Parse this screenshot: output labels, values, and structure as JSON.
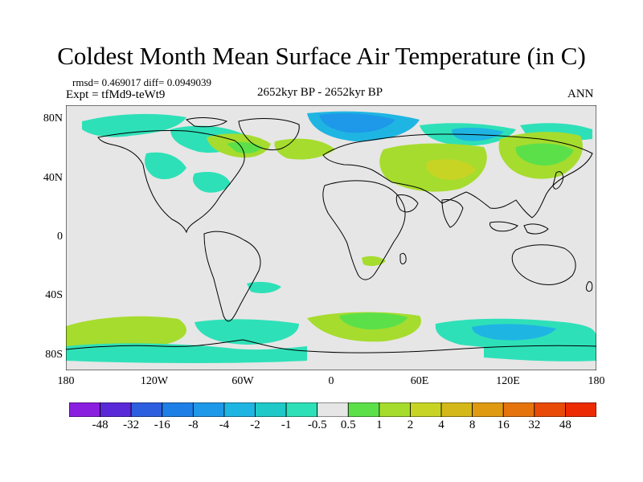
{
  "title": "Coldest Month Mean Surface Air Temperature (in C)",
  "stats": "rmsd= 0.469017 diff= 0.0949039",
  "experiment": "Expt = tfMd9-teWt9",
  "period": "2652kyr BP - 2652kyr BP",
  "season": "ANN",
  "map": {
    "projection": "cylindrical equidistant",
    "lon_range": [
      -180,
      180
    ],
    "lat_range": [
      -90,
      90
    ],
    "x_ticks": [
      "180",
      "120W",
      "60W",
      "0",
      "60E",
      "120E",
      "180"
    ],
    "y_ticks": [
      "80N",
      "40N",
      "0",
      "40S",
      "80S"
    ],
    "background_color": "#e6e6e6",
    "coastline_color": "#000000"
  },
  "colorbar": {
    "labels": [
      "-48",
      "-32",
      "-16",
      "-8",
      "-4",
      "-2",
      "-1",
      "-0.5",
      "0.5",
      "1",
      "2",
      "4",
      "8",
      "16",
      "32",
      "48"
    ],
    "colors": [
      "#8b1fe0",
      "#5a2ad8",
      "#2d5ee0",
      "#1e7fe6",
      "#1e98e8",
      "#1fb5e2",
      "#1ec9c8",
      "#2ee0b8",
      "#e6e6e6",
      "#5ce04a",
      "#a6dc2e",
      "#c8d424",
      "#d4b81a",
      "#e09a12",
      "#e6740c",
      "#ea4a08",
      "#ec2a04"
    ]
  }
}
